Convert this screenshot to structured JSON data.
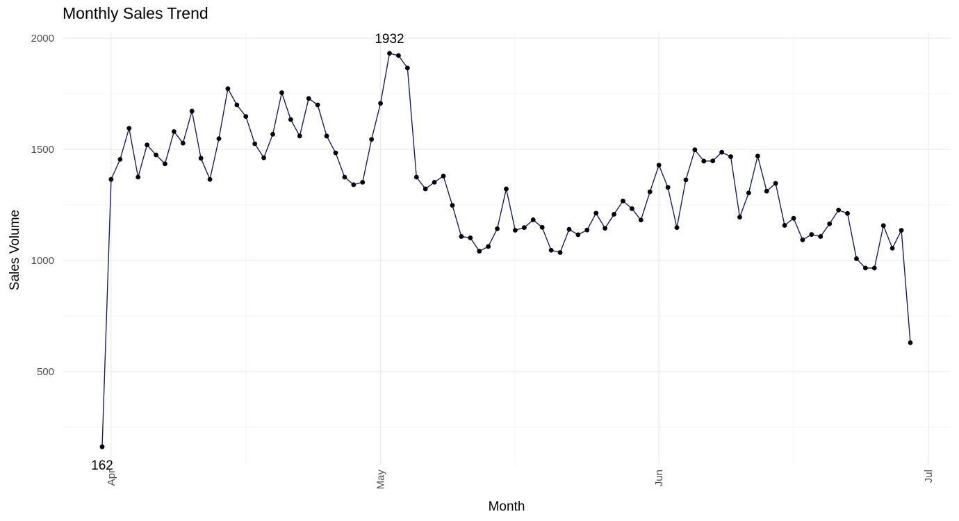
{
  "chart_data": {
    "type": "line",
    "title": "Monthly Sales Trend",
    "xlabel": "Month",
    "ylabel": "Sales Volume",
    "x_ticks": [
      "Apr",
      "May",
      "Jun",
      "Jul"
    ],
    "y_ticks": [
      500,
      1000,
      1500,
      2000
    ],
    "grid": true,
    "legend": "none",
    "colors": {
      "line": "#1a1a6e",
      "point": "#000000",
      "grid": "#ebebeb"
    },
    "series": [
      {
        "x": [
          "2023-03-31",
          "2023-04-01",
          "2023-04-02",
          "2023-04-03",
          "2023-04-04",
          "2023-04-05",
          "2023-04-06",
          "2023-04-07",
          "2023-04-08",
          "2023-04-09",
          "2023-04-10",
          "2023-04-11",
          "2023-04-12",
          "2023-04-13",
          "2023-04-14",
          "2023-04-15",
          "2023-04-16",
          "2023-04-17",
          "2023-04-18",
          "2023-04-19",
          "2023-04-20",
          "2023-04-21",
          "2023-04-22",
          "2023-04-23",
          "2023-04-24",
          "2023-04-25",
          "2023-04-26",
          "2023-04-27",
          "2023-04-28",
          "2023-04-29",
          "2023-04-30",
          "2023-05-01",
          "2023-05-02",
          "2023-05-03",
          "2023-05-04",
          "2023-05-05",
          "2023-05-06",
          "2023-05-07",
          "2023-05-08",
          "2023-05-09",
          "2023-05-10",
          "2023-05-11",
          "2023-05-12",
          "2023-05-13",
          "2023-05-14",
          "2023-05-15",
          "2023-05-16",
          "2023-05-17",
          "2023-05-18",
          "2023-05-19",
          "2023-05-20",
          "2023-05-21",
          "2023-05-22",
          "2023-05-23",
          "2023-05-24",
          "2023-05-25",
          "2023-05-26",
          "2023-05-27",
          "2023-05-28",
          "2023-05-29",
          "2023-05-30",
          "2023-05-31",
          "2023-06-01",
          "2023-06-02",
          "2023-06-03",
          "2023-06-04",
          "2023-06-05",
          "2023-06-06",
          "2023-06-07",
          "2023-06-08",
          "2023-06-09",
          "2023-06-10",
          "2023-06-11",
          "2023-06-12",
          "2023-06-13",
          "2023-06-14",
          "2023-06-15",
          "2023-06-16",
          "2023-06-17",
          "2023-06-18",
          "2023-06-19",
          "2023-06-20",
          "2023-06-21",
          "2023-06-22",
          "2023-06-23",
          "2023-06-24",
          "2023-06-25",
          "2023-06-26",
          "2023-06-27",
          "2023-06-28",
          "2023-06-29"
        ],
        "values": [
          162,
          1365,
          1455,
          1595,
          1375,
          1520,
          1475,
          1435,
          1580,
          1528,
          1672,
          1460,
          1365,
          1548,
          1773,
          1700,
          1648,
          1525,
          1462,
          1568,
          1755,
          1634,
          1560,
          1729,
          1700,
          1560,
          1484,
          1375,
          1341,
          1352,
          1545,
          1707,
          1932,
          1922,
          1866,
          1375,
          1322,
          1352,
          1380,
          1248,
          1108,
          1102,
          1042,
          1063,
          1143,
          1322,
          1136,
          1148,
          1183,
          1149,
          1046,
          1036,
          1140,
          1116,
          1137,
          1213,
          1145,
          1208,
          1268,
          1233,
          1182,
          1309,
          1429,
          1329,
          1148,
          1363,
          1498,
          1447,
          1448,
          1487,
          1467,
          1195,
          1304,
          1470,
          1312,
          1347,
          1158,
          1190,
          1093,
          1117,
          1108,
          1165,
          1227,
          1212,
          1008,
          966,
          966,
          1157,
          1055,
          1136,
          630
        ]
      }
    ],
    "annotations": [
      {
        "text": "1932",
        "x": "2023-05-02",
        "y": 1932
      },
      {
        "text": "162",
        "x": "2023-03-31",
        "y": 162
      }
    ]
  }
}
